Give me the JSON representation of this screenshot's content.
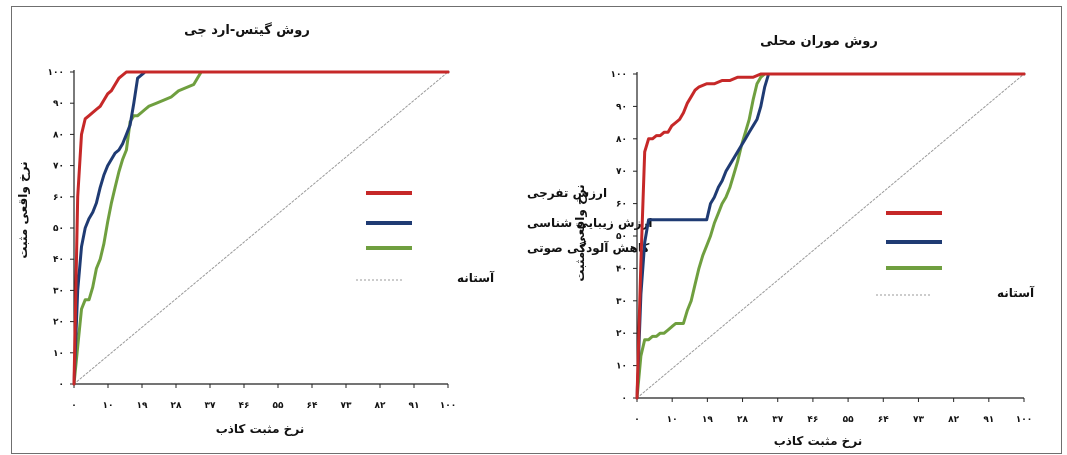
{
  "chart_data": [
    {
      "type": "line",
      "title": "روش گیتس-ارد جی",
      "xlabel": "نرخ مثبت کاذب",
      "ylabel": "نرخ واقعی مثبت",
      "xlim": [
        0,
        100
      ],
      "ylim": [
        0,
        100
      ],
      "xticks": [
        "۰",
        "۱۰",
        "۱۹",
        "۲۸",
        "۳۷",
        "۴۶",
        "۵۵",
        "۶۴",
        "۷۳",
        "۸۲",
        "۹۱",
        "۱۰۰"
      ],
      "yticks": [
        "۰",
        "۱۰",
        "۲۰",
        "۳۰",
        "۴۰",
        "۵۰",
        "۶۰",
        "۷۰",
        "۸۰",
        "۹۰",
        "۱۰۰"
      ],
      "grid": false,
      "legend_position": "right",
      "series": [
        {
          "name": "ارزش تفرجی",
          "color": "#c62828",
          "x": [
            0,
            1,
            2,
            3,
            4,
            6,
            7,
            8,
            9,
            10,
            11,
            12,
            13,
            14,
            100
          ],
          "y": [
            0,
            60,
            80,
            85,
            86,
            88,
            89,
            91,
            93,
            94,
            96,
            98,
            99,
            100,
            100
          ]
        },
        {
          "name": "ارزش زیبایی شناسی",
          "color": "#1f3b73",
          "x": [
            0,
            1,
            2,
            3,
            4,
            5,
            6,
            7,
            8,
            9,
            10,
            11,
            12,
            13,
            14,
            15,
            16,
            17,
            18,
            19,
            20,
            100
          ],
          "y": [
            0,
            30,
            44,
            50,
            53,
            55,
            58,
            63,
            67,
            70,
            72,
            74,
            75,
            77,
            80,
            83,
            90,
            98,
            99,
            100,
            100,
            100
          ]
        },
        {
          "name": "کاهش آلودگی صوتی",
          "color": "#6f9f3f",
          "x": [
            0,
            1,
            2,
            3,
            4,
            5,
            6,
            7,
            8,
            9,
            10,
            11,
            12,
            13,
            14,
            15,
            16,
            17,
            18,
            19,
            20,
            22,
            24,
            26,
            28,
            30,
            32,
            33,
            34,
            100
          ],
          "y": [
            0,
            12,
            24,
            27,
            27,
            31,
            37,
            40,
            45,
            52,
            58,
            63,
            68,
            72,
            75,
            84,
            86,
            86,
            87,
            88,
            89,
            90,
            91,
            92,
            94,
            95,
            96,
            98,
            100,
            100
          ]
        },
        {
          "name": "آستانه",
          "color": "#9a9a9a",
          "dashed": true,
          "x": [
            0,
            100
          ],
          "y": [
            0,
            100
          ]
        }
      ]
    },
    {
      "type": "line",
      "title": "روش موران محلی",
      "xlabel": "نرخ مثبت کاذب",
      "ylabel": "نرخ واقعی مثبت",
      "xlim": [
        0,
        100
      ],
      "ylim": [
        0,
        100
      ],
      "xticks": [
        "۰",
        "۱۰",
        "۱۹",
        "۲۸",
        "۳۷",
        "۴۶",
        "۵۵",
        "۶۴",
        "۷۳",
        "۸۲",
        "۹۱",
        "۱۰۰"
      ],
      "yticks": [
        "۰",
        "۱۰",
        "۲۰",
        "۳۰",
        "۴۰",
        "۵۰",
        "۶۰",
        "۷۰",
        "۸۰",
        "۹۰",
        "۱۰۰"
      ],
      "grid": false,
      "legend_position": "right",
      "series": [
        {
          "name": "ارزش تفرجی",
          "color": "#c62828",
          "x": [
            0,
            1,
            2,
            3,
            4,
            5,
            6,
            7,
            8,
            9,
            10,
            11,
            12,
            13,
            14,
            15,
            16,
            18,
            20,
            22,
            24,
            26,
            28,
            30,
            32,
            33,
            100
          ],
          "y": [
            0,
            42,
            76,
            80,
            80,
            81,
            81,
            82,
            82,
            84,
            85,
            86,
            88,
            91,
            93,
            95,
            96,
            97,
            97,
            98,
            98,
            99,
            99,
            99,
            100,
            100,
            100
          ]
        },
        {
          "name": "ارزش زیبایی شناسی",
          "color": "#1f3b73",
          "x": [
            0,
            1,
            2,
            3,
            5,
            8,
            12,
            18,
            19,
            20,
            21,
            22,
            23,
            24,
            25,
            26,
            27,
            28,
            29,
            30,
            31,
            32,
            33,
            34,
            100
          ],
          "y": [
            0,
            32,
            48,
            55,
            55,
            55,
            55,
            55,
            60,
            62,
            65,
            67,
            70,
            72,
            74,
            76,
            78,
            80,
            82,
            84,
            86,
            90,
            96,
            100,
            100
          ]
        },
        {
          "name": "کاهش آلودگی صوتی",
          "color": "#6f9f3f",
          "x": [
            0,
            1,
            2,
            3,
            4,
            5,
            6,
            7,
            8,
            9,
            10,
            11,
            12,
            13,
            14,
            15,
            16,
            17,
            18,
            19,
            20,
            21,
            22,
            23,
            24,
            25,
            26,
            27,
            28,
            29,
            30,
            31,
            32,
            33,
            100
          ],
          "y": [
            0,
            13,
            18,
            18,
            19,
            19,
            20,
            20,
            21,
            22,
            23,
            23,
            23,
            27,
            30,
            35,
            40,
            44,
            47,
            50,
            54,
            57,
            60,
            62,
            65,
            69,
            73,
            78,
            82,
            86,
            92,
            97,
            99,
            100,
            100
          ]
        },
        {
          "name": "آستانه",
          "color": "#9a9a9a",
          "dashed": true,
          "x": [
            0,
            100
          ],
          "y": [
            0,
            100
          ]
        }
      ]
    }
  ]
}
